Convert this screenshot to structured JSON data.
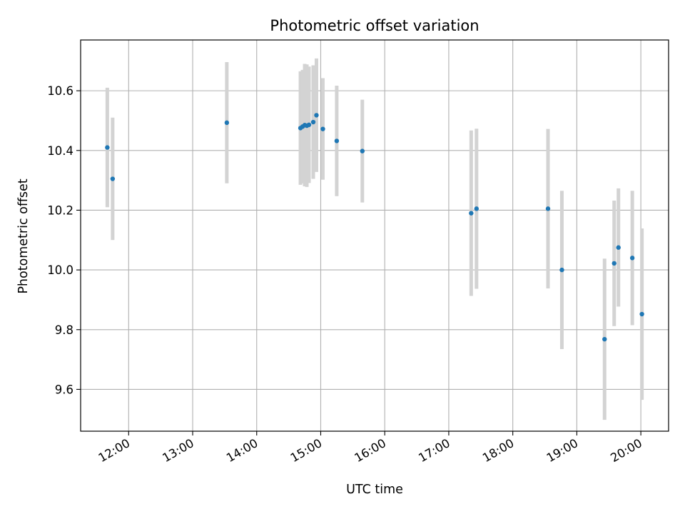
{
  "chart_data": {
    "type": "scatter",
    "title": "Photometric offset variation",
    "xlabel": "UTC time",
    "ylabel": "Photometric offset",
    "x_ticks": [
      "12:00",
      "13:00",
      "14:00",
      "15:00",
      "16:00",
      "17:00",
      "18:00",
      "19:00",
      "20:00"
    ],
    "y_ticks": [
      "9.6",
      "9.8",
      "10.0",
      "10.2",
      "10.4",
      "10.6"
    ],
    "xlim": [
      "11:15",
      "20:26"
    ],
    "ylim": [
      9.46,
      10.77
    ],
    "grid": true,
    "marker_color": "#1f77b4",
    "errorbar_color": "#d3d3d3",
    "points": [
      {
        "x": "11:40",
        "y": 10.41,
        "err": 0.2
      },
      {
        "x": "11:45",
        "y": 10.305,
        "err": 0.205
      },
      {
        "x": "13:32",
        "y": 10.493,
        "err": 0.203
      },
      {
        "x": "14:41",
        "y": 10.475,
        "err": 0.19
      },
      {
        "x": "14:43",
        "y": 10.48,
        "err": 0.19
      },
      {
        "x": "14:45",
        "y": 10.485,
        "err": 0.205
      },
      {
        "x": "14:47",
        "y": 10.483,
        "err": 0.205
      },
      {
        "x": "14:49",
        "y": 10.486,
        "err": 0.195
      },
      {
        "x": "14:53",
        "y": 10.495,
        "err": 0.19
      },
      {
        "x": "14:56",
        "y": 10.518,
        "err": 0.19
      },
      {
        "x": "15:02",
        "y": 10.472,
        "err": 0.17
      },
      {
        "x": "15:15",
        "y": 10.432,
        "err": 0.185
      },
      {
        "x": "15:39",
        "y": 10.398,
        "err": 0.172
      },
      {
        "x": "17:21",
        "y": 10.19,
        "err": 0.277
      },
      {
        "x": "17:26",
        "y": 10.205,
        "err": 0.268
      },
      {
        "x": "18:33",
        "y": 10.205,
        "err": 0.267
      },
      {
        "x": "18:46",
        "y": 10.0,
        "err": 0.265
      },
      {
        "x": "19:26",
        "y": 9.768,
        "err": 0.27
      },
      {
        "x": "19:35",
        "y": 10.022,
        "err": 0.21
      },
      {
        "x": "19:39",
        "y": 10.075,
        "err": 0.198
      },
      {
        "x": "19:52",
        "y": 10.04,
        "err": 0.225
      },
      {
        "x": "20:01",
        "y": 9.852,
        "err": 0.287
      }
    ]
  }
}
